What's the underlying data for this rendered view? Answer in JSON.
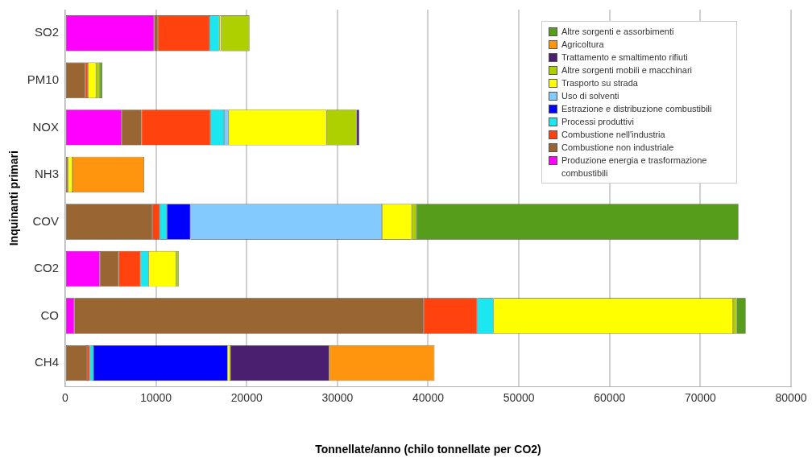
{
  "chart_data": {
    "type": "bar",
    "orientation": "horizontal",
    "stacked": true,
    "xlabel": "Tonnellate/anno (chilo tonnellate per CO2)",
    "ylabel": "Inquinanti primari",
    "categories": [
      "SO2",
      "PM10",
      "NOX",
      "NH3",
      "COV",
      "CO2",
      "CO",
      "CH4"
    ],
    "series": [
      {
        "name": "Produzione energia e trasformazione combustibili",
        "color": "#ff00ff",
        "values": [
          9800,
          null,
          6200,
          null,
          null,
          3800,
          1000,
          null
        ]
      },
      {
        "name": "Combustione non industriale",
        "color": "#996633",
        "values": [
          400,
          2200,
          2200,
          300,
          9600,
          2100,
          38500,
          2400
        ]
      },
      {
        "name": "Combustione nell'industria",
        "color": "#ff420e",
        "values": [
          5700,
          300,
          7600,
          null,
          800,
          2400,
          5900,
          300
        ]
      },
      {
        "name": "Processi produttivi",
        "color": "#1ce6f0",
        "values": [
          1100,
          null,
          1500,
          null,
          800,
          900,
          1800,
          400
        ]
      },
      {
        "name": "Estrazione e distribuzione combustibili",
        "color": "#0000ff",
        "values": [
          null,
          null,
          null,
          null,
          2600,
          null,
          null,
          14800
        ]
      },
      {
        "name": "Uso di solventi",
        "color": "#83caff",
        "values": [
          null,
          null,
          500,
          null,
          21100,
          null,
          null,
          null
        ]
      },
      {
        "name": "Trasporto su strada",
        "color": "#ffff00",
        "values": [
          200,
          900,
          10800,
          500,
          3300,
          3000,
          26400,
          300
        ]
      },
      {
        "name": "Altre sorgenti mobili e macchinari",
        "color": "#aecf00",
        "values": [
          3100,
          400,
          3300,
          null,
          500,
          300,
          400,
          null
        ]
      },
      {
        "name": "Trattamento e smaltimento rifiuti",
        "color": "#4b1f6f",
        "values": [
          null,
          null,
          300,
          null,
          null,
          null,
          null,
          10900
        ]
      },
      {
        "name": "Agricoltura",
        "color": "#ff950e",
        "values": [
          null,
          null,
          null,
          7900,
          null,
          null,
          null,
          11600
        ]
      },
      {
        "name": "Altre sorgenti e assorbimenti",
        "color": "#579d1c",
        "values": [
          null,
          300,
          null,
          null,
          35500,
          null,
          1000,
          null
        ]
      }
    ],
    "xlim": [
      0,
      80000
    ],
    "xticks": [
      0,
      10000,
      20000,
      30000,
      40000,
      50000,
      60000,
      70000,
      80000
    ],
    "grid": "x",
    "legend": "top right"
  }
}
